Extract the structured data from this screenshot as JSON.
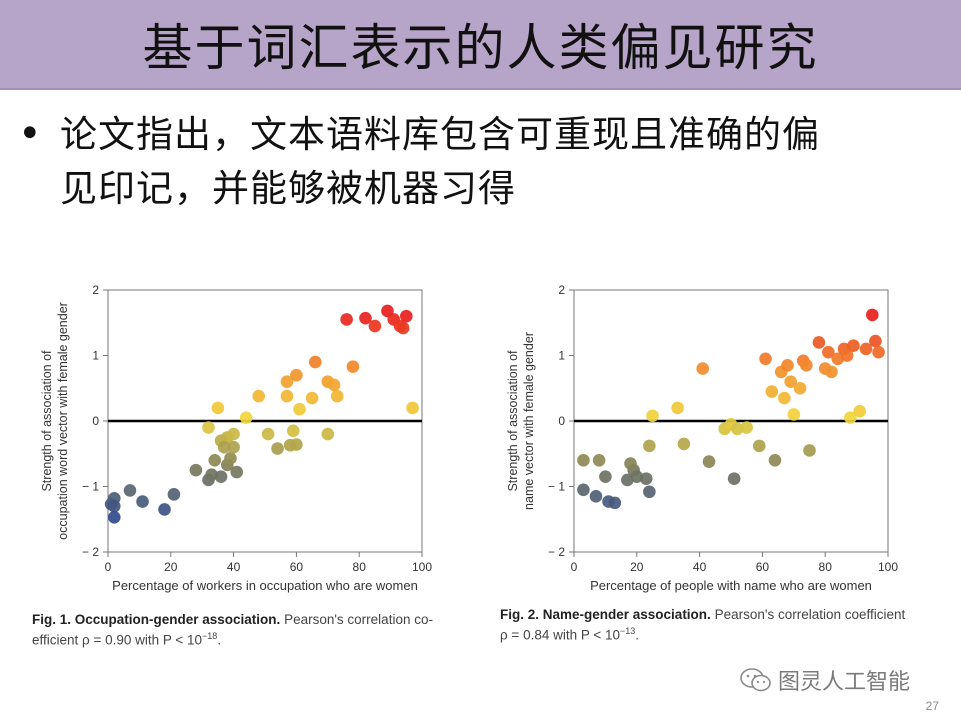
{
  "slide": {
    "title": "基于词汇表示的人类偏见研究",
    "bullet_line1": "论文指出，文本语料库包含可重现且准确的偏",
    "bullet_line2": "见印记，并能够被机器习得",
    "watermark": "图灵人工智能",
    "page_number": "27"
  },
  "captions": {
    "fig1_bold": "Fig. 1. Occupation-gender association.",
    "fig1_rest": "Pearson's correlation co-",
    "fig1_line2": "efficient ρ = 0.90 with P < 10",
    "fig1_exp": "−18",
    "fig2_bold": "Fig. 2. Name-gender association.",
    "fig2_rest": "Pearson's correlation coefficient",
    "fig2_line2": "ρ = 0.84 with P < 10",
    "fig2_exp": "−13"
  },
  "chart_data": [
    {
      "type": "scatter",
      "title": "",
      "xlabel": "Percentage of workers in occupation who are women",
      "ylabel": "Strength of association of occupation word vector with female gender",
      "xlim": [
        0,
        100
      ],
      "ylim": [
        -2,
        2
      ],
      "xticks": [
        0,
        20,
        40,
        60,
        80,
        100
      ],
      "yticks": [
        -2,
        -1,
        0,
        1,
        2
      ],
      "ytick_labels": [
        "− 2",
        "− 1",
        "0",
        "1",
        "2"
      ],
      "points": [
        [
          1,
          -1.27
        ],
        [
          2,
          -1.18
        ],
        [
          2,
          -1.3
        ],
        [
          2,
          -1.47
        ],
        [
          7,
          -1.06
        ],
        [
          11,
          -1.23
        ],
        [
          18,
          -1.35
        ],
        [
          21,
          -1.12
        ],
        [
          28,
          -0.75
        ],
        [
          32,
          -0.9
        ],
        [
          33,
          -0.82
        ],
        [
          36,
          -0.85
        ],
        [
          34,
          -0.6
        ],
        [
          38,
          -0.67
        ],
        [
          39,
          -0.57
        ],
        [
          40,
          -0.4
        ],
        [
          41,
          -0.78
        ],
        [
          36,
          -0.3
        ],
        [
          38,
          -0.25
        ],
        [
          40,
          -0.2
        ],
        [
          32,
          -0.1
        ],
        [
          37,
          -0.4
        ],
        [
          35,
          0.2
        ],
        [
          44,
          0.05
        ],
        [
          48,
          0.38
        ],
        [
          51,
          -0.2
        ],
        [
          54,
          -0.42
        ],
        [
          58,
          -0.37
        ],
        [
          59,
          -0.15
        ],
        [
          60,
          -0.36
        ],
        [
          61,
          0.18
        ],
        [
          57,
          0.6
        ],
        [
          57,
          0.38
        ],
        [
          60,
          0.7
        ],
        [
          65,
          0.35
        ],
        [
          66,
          0.9
        ],
        [
          70,
          0.6
        ],
        [
          70,
          -0.2
        ],
        [
          73,
          0.38
        ],
        [
          72,
          0.55
        ],
        [
          76,
          1.55
        ],
        [
          78,
          0.83
        ],
        [
          82,
          1.57
        ],
        [
          85,
          1.45
        ],
        [
          89,
          1.68
        ],
        [
          91,
          1.55
        ],
        [
          93,
          1.45
        ],
        [
          94,
          1.42
        ],
        [
          95,
          1.6
        ],
        [
          97,
          0.2
        ]
      ]
    },
    {
      "type": "scatter",
      "title": "",
      "xlabel": "Percentage of people with name who are women",
      "ylabel": "Strength of association of name vector with female gender",
      "xlim": [
        0,
        100
      ],
      "ylim": [
        -2,
        2
      ],
      "xticks": [
        0,
        20,
        40,
        60,
        80,
        100
      ],
      "yticks": [
        -2,
        -1,
        0,
        1,
        2
      ],
      "ytick_labels": [
        "− 2",
        "− 1",
        "0",
        "1",
        "2"
      ],
      "points": [
        [
          3,
          -0.6
        ],
        [
          8,
          -0.6
        ],
        [
          3,
          -1.05
        ],
        [
          7,
          -1.15
        ],
        [
          11,
          -1.23
        ],
        [
          13,
          -1.25
        ],
        [
          10,
          -0.85
        ],
        [
          17,
          -0.9
        ],
        [
          19,
          -0.75
        ],
        [
          18,
          -0.65
        ],
        [
          20,
          -0.85
        ],
        [
          23,
          -0.88
        ],
        [
          24,
          -1.08
        ],
        [
          24,
          -0.38
        ],
        [
          25,
          0.08
        ],
        [
          33,
          0.2
        ],
        [
          35,
          -0.35
        ],
        [
          41,
          0.8
        ],
        [
          43,
          -0.62
        ],
        [
          48,
          -0.12
        ],
        [
          50,
          -0.05
        ],
        [
          52,
          -0.12
        ],
        [
          51,
          -0.88
        ],
        [
          55,
          -0.1
        ],
        [
          59,
          -0.38
        ],
        [
          61,
          0.95
        ],
        [
          63,
          0.45
        ],
        [
          64,
          -0.6
        ],
        [
          66,
          0.75
        ],
        [
          67,
          0.35
        ],
        [
          68,
          0.85
        ],
        [
          69,
          0.6
        ],
        [
          70,
          0.1
        ],
        [
          72,
          0.5
        ],
        [
          73,
          0.92
        ],
        [
          74,
          0.85
        ],
        [
          75,
          -0.45
        ],
        [
          78,
          1.2
        ],
        [
          80,
          0.8
        ],
        [
          81,
          1.05
        ],
        [
          82,
          0.75
        ],
        [
          84,
          0.95
        ],
        [
          86,
          1.1
        ],
        [
          87,
          1.0
        ],
        [
          88,
          0.05
        ],
        [
          89,
          1.15
        ],
        [
          91,
          0.15
        ],
        [
          93,
          1.1
        ],
        [
          95,
          1.62
        ],
        [
          96,
          1.22
        ],
        [
          97,
          1.05
        ]
      ]
    }
  ],
  "colors": {
    "title_bar": "#b7a5c9",
    "color_scale": [
      "#2e4a8f",
      "#7a7a5a",
      "#f1d63a",
      "#f28a2a",
      "#e8201e"
    ]
  }
}
